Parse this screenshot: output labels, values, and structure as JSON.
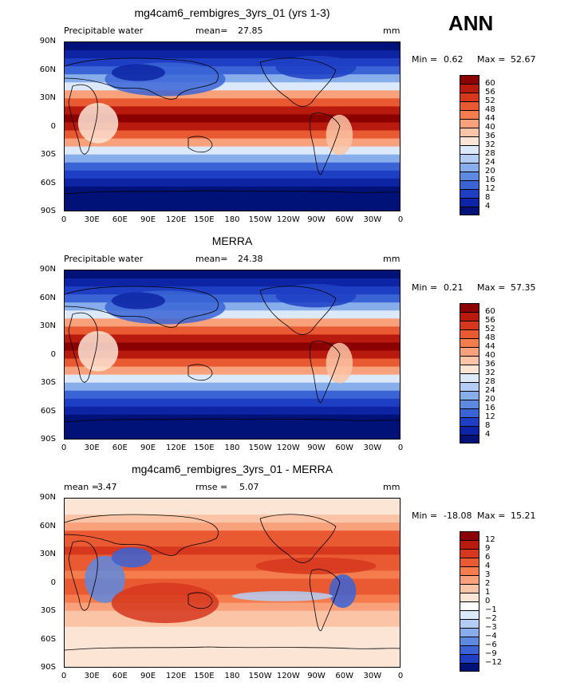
{
  "season": "ANN",
  "panels": [
    {
      "title": "mg4cam6_rembigres_3yrs_01 (yrs 1-3)",
      "variable": "Precipitable water",
      "stat_label": "mean=",
      "stat_value": "27.85",
      "stat2_label": "",
      "stat2_value": "",
      "units": "mm",
      "min_label": "Min =",
      "min_value": "0.62",
      "max_label": "Max =",
      "max_value": "52.67",
      "colorbar_labels": [
        "60",
        "56",
        "52",
        "48",
        "44",
        "40",
        "36",
        "32",
        "28",
        "24",
        "20",
        "16",
        "12",
        "8",
        "4"
      ],
      "colorbar_colors": [
        "#8b0000",
        "#b81b0e",
        "#d6371d",
        "#ea5a32",
        "#f57d4d",
        "#f8a17b",
        "#fbc4a6",
        "#fde5d6",
        "#dce9fb",
        "#b4cdf5",
        "#88adeb",
        "#5d89e0",
        "#3a64d6",
        "#1e3fc4",
        "#0d24a5",
        "#001177"
      ],
      "type": "field"
    },
    {
      "title": "MERRA",
      "variable": "Precipitable water",
      "stat_label": "mean=",
      "stat_value": "24.38",
      "stat2_label": "",
      "stat2_value": "",
      "units": "mm",
      "min_label": "Min =",
      "min_value": "0.21",
      "max_label": "Max =",
      "max_value": "57.35",
      "colorbar_labels": [
        "60",
        "56",
        "52",
        "48",
        "44",
        "40",
        "36",
        "32",
        "28",
        "24",
        "20",
        "16",
        "12",
        "8",
        "4"
      ],
      "colorbar_colors": [
        "#8b0000",
        "#b81b0e",
        "#d6371d",
        "#ea5a32",
        "#f57d4d",
        "#f8a17b",
        "#fbc4a6",
        "#fde5d6",
        "#dce9fb",
        "#b4cdf5",
        "#88adeb",
        "#5d89e0",
        "#3a64d6",
        "#1e3fc4",
        "#0d24a5",
        "#001177"
      ],
      "type": "field"
    },
    {
      "title": "mg4cam6_rembigres_3yrs_01 - MERRA",
      "variable": "",
      "stat_label": "mean =",
      "stat_value": "3.47",
      "stat2_label": "rmse =",
      "stat2_value": "5.07",
      "units": "mm",
      "min_label": "Min =",
      "min_value": "-18.08",
      "max_label": "Max =",
      "max_value": "15.21",
      "colorbar_labels": [
        "12",
        "9",
        "6",
        "4",
        "3",
        "2",
        "1",
        "0",
        "−1",
        "−2",
        "−3",
        "−4",
        "−6",
        "−9",
        "−12"
      ],
      "colorbar_colors": [
        "#8b0000",
        "#b81b0e",
        "#d6371d",
        "#ea5a32",
        "#f57d4d",
        "#f8a17b",
        "#fbc4a6",
        "#fde5d6",
        "#ffffff",
        "#dce9fb",
        "#b4cdf5",
        "#88adeb",
        "#5d89e0",
        "#3a64d6",
        "#1e3fc4",
        "#001177"
      ],
      "type": "diff"
    }
  ],
  "lat_labels": [
    "90N",
    "60N",
    "30N",
    "0",
    "30S",
    "60S",
    "90S"
  ],
  "lon_labels": [
    "0",
    "30E",
    "60E",
    "90E",
    "120E",
    "150E",
    "180",
    "150W",
    "120W",
    "90W",
    "60W",
    "30W",
    "0"
  ],
  "lon_values": [
    0,
    30,
    60,
    90,
    120,
    150,
    180,
    210,
    240,
    270,
    300,
    330,
    360
  ],
  "lat_values": [
    90,
    60,
    30,
    0,
    -30,
    -60,
    -90
  ]
}
